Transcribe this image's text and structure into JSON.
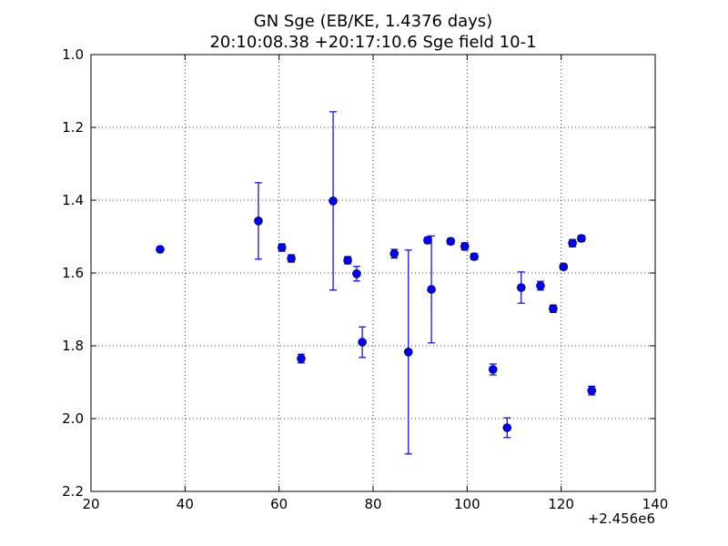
{
  "chart_data": {
    "type": "scatter",
    "title": "GN Sge (EB/KE, 1.4376 days)",
    "subtitle": "20:10:08.38 +20:17:10.6 Sge field 10-1",
    "x": [
      34.7,
      55.6,
      60.6,
      62.6,
      64.7,
      71.5,
      74.6,
      76.5,
      77.7,
      84.5,
      87.5,
      91.6,
      92.4,
      96.5,
      99.5,
      101.5,
      105.5,
      108.5,
      111.5,
      115.6,
      118.3,
      120.5,
      122.4,
      124.3,
      126.5
    ],
    "values": [
      1.535,
      1.457,
      1.53,
      1.56,
      1.835,
      1.402,
      1.565,
      1.602,
      1.79,
      1.547,
      1.817,
      1.51,
      1.645,
      1.513,
      1.527,
      1.555,
      1.865,
      2.025,
      1.64,
      1.635,
      1.698,
      1.583,
      1.518,
      1.505,
      1.923
    ],
    "errors": [
      0.005,
      0.105,
      0.01,
      0.01,
      0.012,
      0.245,
      0.01,
      0.02,
      0.042,
      0.012,
      0.28,
      0.008,
      0.147,
      0.008,
      0.01,
      0.008,
      0.015,
      0.027,
      0.043,
      0.012,
      0.01,
      0.008,
      0.01,
      0.008,
      0.012
    ],
    "color": "#0000ff",
    "xlim": [
      20,
      140
    ],
    "xticks": [
      20,
      40,
      60,
      80,
      100,
      120,
      140
    ],
    "x_offset_label": "+2.456e6",
    "ylim": [
      1,
      2.2
    ],
    "invert_y": true,
    "yticks": [
      {
        "value": 1,
        "label": "1.0"
      },
      1.2,
      1.4,
      1.6,
      1.8,
      {
        "value": 2,
        "label": "2.0"
      },
      2.2
    ],
    "grid": true
  }
}
